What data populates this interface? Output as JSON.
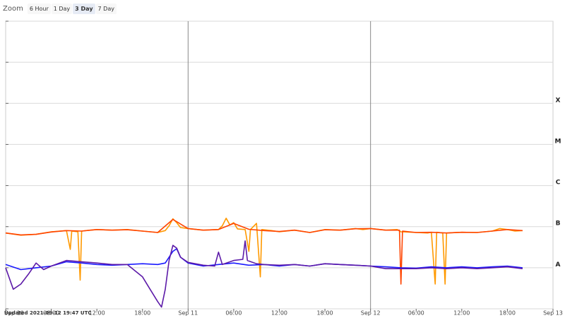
{
  "toolbar": {
    "zoom_label": "Zoom",
    "buttons": [
      {
        "label": "6 Hour",
        "active": false
      },
      {
        "label": "1 Day",
        "active": false
      },
      {
        "label": "3 Day",
        "active": true
      },
      {
        "label": "7 Day",
        "active": false
      }
    ]
  },
  "updated_text": "Updated 2021-09-12 19:47 UTC",
  "chart_data": {
    "type": "line",
    "x_unit": "hours since Sep 10 00:00 UTC",
    "xlim": [
      0,
      72
    ],
    "x_ticks": [
      {
        "x": 0,
        "label": "Sep 10"
      },
      {
        "x": 6,
        "label": "06:00"
      },
      {
        "x": 12,
        "label": "12:00"
      },
      {
        "x": 18,
        "label": "18:00"
      },
      {
        "x": 24,
        "label": "Sep 11"
      },
      {
        "x": 30,
        "label": "06:00"
      },
      {
        "x": 36,
        "label": "12:00"
      },
      {
        "x": 42,
        "label": "18:00"
      },
      {
        "x": 48,
        "label": "Sep 12"
      },
      {
        "x": 54,
        "label": "06:00"
      },
      {
        "x": 60,
        "label": "12:00"
      },
      {
        "x": 66,
        "label": "18:00"
      },
      {
        "x": 72,
        "label": "Sep 13"
      }
    ],
    "y_scale": "log",
    "ylim": [
      1e-09,
      0.01
    ],
    "flare_classes": [
      {
        "label": "X",
        "y": 0.0001
      },
      {
        "label": "M",
        "y": 1e-05
      },
      {
        "label": "C",
        "y": 1e-06
      },
      {
        "label": "B",
        "y": 1e-07
      },
      {
        "label": "A",
        "y": 1e-08
      }
    ],
    "day_dividers": [
      24,
      48
    ],
    "series": [
      {
        "color": "#ff9900",
        "values": [
          [
            0,
            7e-08
          ],
          [
            2,
            6.2e-08
          ],
          [
            4,
            6.5e-08
          ],
          [
            6,
            7.5e-08
          ],
          [
            8,
            8e-08
          ],
          [
            8.5,
            2.8e-08
          ],
          [
            8.7,
            7.8e-08
          ],
          [
            9.5,
            7.5e-08
          ],
          [
            9.8,
            5e-09
          ],
          [
            10,
            7.8e-08
          ],
          [
            12,
            8.5e-08
          ],
          [
            14,
            8.2e-08
          ],
          [
            16,
            8.5e-08
          ],
          [
            18,
            7.8e-08
          ],
          [
            20,
            7.2e-08
          ],
          [
            21,
            8e-08
          ],
          [
            21.5,
            1.05e-07
          ],
          [
            22,
            1.55e-07
          ],
          [
            22.5,
            1.25e-07
          ],
          [
            23,
            9.5e-08
          ],
          [
            24,
            9e-08
          ],
          [
            26,
            8.2e-08
          ],
          [
            28,
            8.5e-08
          ],
          [
            28.5,
            1.05e-07
          ],
          [
            29,
            1.6e-07
          ],
          [
            29.5,
            1.1e-07
          ],
          [
            30,
            1.25e-07
          ],
          [
            30.5,
            8.8e-08
          ],
          [
            31.5,
            8.5e-08
          ],
          [
            32,
            2.5e-08
          ],
          [
            32.2,
            8.5e-08
          ],
          [
            33,
            1.2e-07
          ],
          [
            33.5,
            6e-09
          ],
          [
            33.7,
            8.5e-08
          ],
          [
            35,
            8e-08
          ],
          [
            36,
            7.5e-08
          ],
          [
            38,
            8.2e-08
          ],
          [
            40,
            7.2e-08
          ],
          [
            42,
            8.5e-08
          ],
          [
            44,
            8.2e-08
          ],
          [
            46,
            9e-08
          ],
          [
            47,
            8.5e-08
          ],
          [
            48,
            9e-08
          ],
          [
            50,
            8.2e-08
          ],
          [
            51.5,
            8.5e-08
          ],
          [
            52,
            7.5e-08
          ],
          [
            54,
            7.2e-08
          ],
          [
            55.5,
            7e-08
          ],
          [
            56,
            7.3e-08
          ],
          [
            56.5,
            4e-09
          ],
          [
            56.7,
            7.3e-08
          ],
          [
            57.5,
            7e-08
          ],
          [
            57.8,
            4e-09
          ],
          [
            58,
            7e-08
          ],
          [
            60,
            7.3e-08
          ],
          [
            62,
            7.2e-08
          ],
          [
            64,
            7.8e-08
          ],
          [
            65,
            9e-08
          ],
          [
            66,
            8.5e-08
          ],
          [
            67,
            7.8e-08
          ],
          [
            68,
            8e-08
          ]
        ]
      },
      {
        "color": "#ff4400",
        "values": [
          [
            0,
            7e-08
          ],
          [
            2,
            6.3e-08
          ],
          [
            4,
            6.5e-08
          ],
          [
            6,
            7.4e-08
          ],
          [
            8,
            8e-08
          ],
          [
            10,
            7.8e-08
          ],
          [
            12,
            8.5e-08
          ],
          [
            14,
            8.2e-08
          ],
          [
            16,
            8.4e-08
          ],
          [
            18,
            7.8e-08
          ],
          [
            20,
            7.2e-08
          ],
          [
            22,
            1.5e-07
          ],
          [
            24,
            9e-08
          ],
          [
            26,
            8.2e-08
          ],
          [
            28,
            8.5e-08
          ],
          [
            30,
            1.2e-07
          ],
          [
            32,
            8.6e-08
          ],
          [
            34,
            8e-08
          ],
          [
            36,
            7.6e-08
          ],
          [
            38,
            8.2e-08
          ],
          [
            40,
            7.2e-08
          ],
          [
            42,
            8.4e-08
          ],
          [
            44,
            8.2e-08
          ],
          [
            46,
            8.9e-08
          ],
          [
            48,
            9e-08
          ],
          [
            50,
            8.2e-08
          ],
          [
            51.8,
            8.2e-08
          ],
          [
            52,
            4e-09
          ],
          [
            52.2,
            7.8e-08
          ],
          [
            54,
            7.2e-08
          ],
          [
            56,
            7.3e-08
          ],
          [
            58,
            7e-08
          ],
          [
            60,
            7.3e-08
          ],
          [
            62,
            7.2e-08
          ],
          [
            64,
            7.8e-08
          ],
          [
            66,
            8.5e-08
          ],
          [
            68,
            8e-08
          ]
        ]
      },
      {
        "color": "#1a1aff",
        "values": [
          [
            0,
            1.2e-08
          ],
          [
            2,
            9e-09
          ],
          [
            4,
            1e-08
          ],
          [
            6,
            1.1e-08
          ],
          [
            8,
            1.4e-08
          ],
          [
            10,
            1.3e-08
          ],
          [
            12,
            1.2e-08
          ],
          [
            14,
            1.15e-08
          ],
          [
            16,
            1.2e-08
          ],
          [
            18,
            1.25e-08
          ],
          [
            20,
            1.2e-08
          ],
          [
            21,
            1.3e-08
          ],
          [
            22,
            2.5e-08
          ],
          [
            22.5,
            2.9e-08
          ],
          [
            23,
            1.8e-08
          ],
          [
            24,
            1.3e-08
          ],
          [
            26,
            1.1e-08
          ],
          [
            28,
            1.2e-08
          ],
          [
            30,
            1.3e-08
          ],
          [
            32,
            1.15e-08
          ],
          [
            34,
            1.2e-08
          ],
          [
            36,
            1.1e-08
          ],
          [
            38,
            1.2e-08
          ],
          [
            40,
            1.1e-08
          ],
          [
            42,
            1.25e-08
          ],
          [
            44,
            1.2e-08
          ],
          [
            46,
            1.15e-08
          ],
          [
            48,
            1.1e-08
          ],
          [
            50,
            1.05e-08
          ],
          [
            52,
            1e-08
          ],
          [
            54,
            9.8e-09
          ],
          [
            56,
            1.05e-08
          ],
          [
            58,
            1e-08
          ],
          [
            60,
            1.05e-08
          ],
          [
            62,
            1e-08
          ],
          [
            64,
            1.05e-08
          ],
          [
            66,
            1.1e-08
          ],
          [
            68,
            1e-08
          ]
        ]
      },
      {
        "color": "#5c1aa8",
        "values": [
          [
            0,
            1e-08
          ],
          [
            1,
            3e-09
          ],
          [
            2,
            4e-09
          ],
          [
            3,
            7e-09
          ],
          [
            4,
            1.3e-08
          ],
          [
            5,
            9e-09
          ],
          [
            6,
            1.1e-08
          ],
          [
            8,
            1.5e-08
          ],
          [
            10,
            1.4e-08
          ],
          [
            12,
            1.3e-08
          ],
          [
            14,
            1.2e-08
          ],
          [
            16,
            1.2e-08
          ],
          [
            18,
            6e-09
          ],
          [
            19,
            3e-09
          ],
          [
            20,
            1.5e-09
          ],
          [
            20.5,
            1.1e-09
          ],
          [
            21,
            3e-09
          ],
          [
            21.5,
            1.5e-08
          ],
          [
            22,
            3.5e-08
          ],
          [
            22.5,
            3e-08
          ],
          [
            23,
            1.8e-08
          ],
          [
            24,
            1.35e-08
          ],
          [
            26,
            1.15e-08
          ],
          [
            27.5,
            1.1e-08
          ],
          [
            28,
            2.4e-08
          ],
          [
            28.5,
            1.2e-08
          ],
          [
            30,
            1.5e-08
          ],
          [
            31.2,
            1.6e-08
          ],
          [
            31.5,
            4.5e-08
          ],
          [
            31.8,
            1.5e-08
          ],
          [
            33,
            1.25e-08
          ],
          [
            34,
            1.2e-08
          ],
          [
            36,
            1.15e-08
          ],
          [
            38,
            1.2e-08
          ],
          [
            40,
            1.1e-08
          ],
          [
            42,
            1.25e-08
          ],
          [
            44,
            1.2e-08
          ],
          [
            46,
            1.15e-08
          ],
          [
            48,
            1.1e-08
          ],
          [
            50,
            9.5e-09
          ],
          [
            52,
            9.5e-09
          ],
          [
            54,
            9.5e-09
          ],
          [
            56,
            1e-08
          ],
          [
            58,
            9.5e-09
          ],
          [
            60,
            1e-08
          ],
          [
            62,
            9.5e-09
          ],
          [
            64,
            1e-08
          ],
          [
            66,
            1.05e-08
          ],
          [
            68,
            9.5e-09
          ]
        ]
      }
    ]
  }
}
